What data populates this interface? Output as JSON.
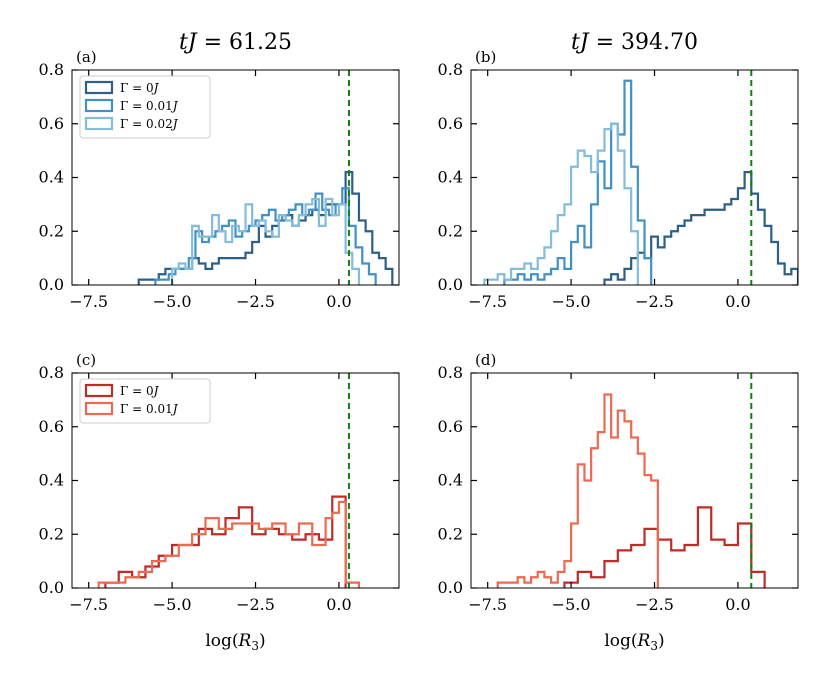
{
  "chart_data": [
    {
      "type": "histogram",
      "panel_label": "(a)",
      "column_title": "tJ = 61.25",
      "xlim": [
        -8.0,
        1.8
      ],
      "ylim": [
        0.0,
        0.8
      ],
      "xticks": [
        -7.5,
        -5.0,
        -2.5,
        0.0
      ],
      "xtick_labels": [
        "−7.5",
        "−5.0",
        "−2.5",
        "0.0"
      ],
      "yticks": [
        0.0,
        0.2,
        0.4,
        0.6,
        0.8
      ],
      "ytick_labels": [
        "0.0",
        "0.2",
        "0.4",
        "0.6",
        "0.8"
      ],
      "xlabel": "",
      "reference_line_x": 0.3,
      "legend_position": "top-left",
      "series": [
        {
          "name": "Γ = 0J",
          "color": "#2e5f86",
          "edges": [
            -6.0,
            -5.8,
            -5.6,
            -5.4,
            -5.2,
            -5.0,
            -4.8,
            -4.6,
            -4.4,
            -4.2,
            -4.0,
            -3.8,
            -3.6,
            -3.4,
            -3.2,
            -3.0,
            -2.8,
            -2.6,
            -2.4,
            -2.2,
            -2.0,
            -1.8,
            -1.6,
            -1.4,
            -1.2,
            -1.0,
            -0.8,
            -0.6,
            -0.4,
            -0.2,
            0.0,
            0.2,
            0.4,
            0.6,
            0.8,
            1.0,
            1.2,
            1.4,
            1.6
          ],
          "values": [
            0.02,
            0.02,
            0.02,
            0.04,
            0.06,
            0.06,
            0.06,
            0.06,
            0.1,
            0.08,
            0.06,
            0.08,
            0.1,
            0.1,
            0.1,
            0.1,
            0.12,
            0.16,
            0.22,
            0.18,
            0.22,
            0.24,
            0.26,
            0.22,
            0.24,
            0.26,
            0.28,
            0.26,
            0.3,
            0.3,
            0.3,
            0.42,
            0.34,
            0.24,
            0.2,
            0.12,
            0.1,
            0.06
          ]
        },
        {
          "name": "Γ = 0.01J",
          "color": "#4190c6",
          "edges": [
            -5.5,
            -5.3,
            -5.1,
            -4.9,
            -4.7,
            -4.5,
            -4.3,
            -4.1,
            -3.9,
            -3.7,
            -3.5,
            -3.3,
            -3.1,
            -2.9,
            -2.7,
            -2.5,
            -2.3,
            -2.1,
            -1.9,
            -1.7,
            -1.5,
            -1.3,
            -1.1,
            -0.9,
            -0.7,
            -0.5,
            -0.3,
            -0.1,
            0.1,
            0.3,
            0.5,
            0.7,
            0.9,
            1.1
          ],
          "values": [
            0.02,
            0.02,
            0.04,
            0.06,
            0.06,
            0.1,
            0.2,
            0.16,
            0.18,
            0.2,
            0.22,
            0.24,
            0.18,
            0.2,
            0.22,
            0.24,
            0.26,
            0.28,
            0.24,
            0.26,
            0.28,
            0.3,
            0.26,
            0.28,
            0.34,
            0.28,
            0.26,
            0.3,
            0.36,
            0.22,
            0.14,
            0.08,
            0.04
          ]
        },
        {
          "name": "Γ = 0.02J",
          "color": "#84bcdb",
          "edges": [
            -5.0,
            -4.8,
            -4.6,
            -4.4,
            -4.2,
            -4.0,
            -3.8,
            -3.6,
            -3.4,
            -3.2,
            -3.0,
            -2.8,
            -2.6,
            -2.4,
            -2.2,
            -2.0,
            -1.8,
            -1.6,
            -1.4,
            -1.2,
            -1.0,
            -0.8,
            -0.6,
            -0.4,
            -0.2,
            0.0,
            0.2,
            0.4,
            0.6
          ],
          "values": [
            0.06,
            0.08,
            0.06,
            0.22,
            0.18,
            0.18,
            0.26,
            0.2,
            0.16,
            0.22,
            0.2,
            0.3,
            0.22,
            0.24,
            0.2,
            0.18,
            0.26,
            0.24,
            0.22,
            0.26,
            0.3,
            0.32,
            0.22,
            0.32,
            0.26,
            0.3,
            0.12,
            0.06
          ]
        }
      ]
    },
    {
      "type": "histogram",
      "panel_label": "(b)",
      "column_title": "tJ = 394.70",
      "xlim": [
        -8.0,
        1.8
      ],
      "ylim": [
        0.0,
        0.8
      ],
      "xticks": [
        -7.5,
        -5.0,
        -2.5,
        0.0
      ],
      "xtick_labels": [
        "−7.5",
        "−5.0",
        "−2.5",
        "0.0"
      ],
      "yticks": [
        0.0,
        0.2,
        0.4,
        0.6,
        0.8
      ],
      "ytick_labels": [
        "0.0",
        "0.2",
        "0.4",
        "0.6",
        "0.8"
      ],
      "xlabel": "",
      "reference_line_x": 0.4,
      "series": [
        {
          "name": "Γ = 0J",
          "color": "#2e5f86",
          "edges": [
            -4.0,
            -3.8,
            -3.6,
            -3.4,
            -3.2,
            -3.0,
            -2.8,
            -2.6,
            -2.4,
            -2.2,
            -2.0,
            -1.8,
            -1.6,
            -1.4,
            -1.2,
            -1.0,
            -0.8,
            -0.6,
            -0.4,
            -0.2,
            0.0,
            0.2,
            0.4,
            0.6,
            0.8,
            1.0,
            1.2,
            1.4,
            1.6,
            1.8
          ],
          "values": [
            0.02,
            0.04,
            0.02,
            0.06,
            0.1,
            0.12,
            0.1,
            0.18,
            0.14,
            0.18,
            0.2,
            0.22,
            0.24,
            0.26,
            0.26,
            0.28,
            0.28,
            0.28,
            0.3,
            0.32,
            0.36,
            0.42,
            0.34,
            0.28,
            0.22,
            0.16,
            0.08,
            0.04,
            0.06
          ]
        },
        {
          "name": "Γ = 0.01J",
          "color": "#4190c6",
          "edges": [
            -7.0,
            -6.8,
            -6.6,
            -6.4,
            -6.2,
            -6.0,
            -5.8,
            -5.6,
            -5.4,
            -5.2,
            -5.0,
            -4.8,
            -4.6,
            -4.4,
            -4.2,
            -4.0,
            -3.8,
            -3.6,
            -3.4,
            -3.2,
            -3.0,
            -2.8,
            -2.6
          ],
          "values": [
            0.02,
            0.02,
            0.04,
            0.02,
            0.04,
            0.02,
            0.04,
            0.06,
            0.1,
            0.06,
            0.16,
            0.22,
            0.14,
            0.3,
            0.46,
            0.36,
            0.6,
            0.56,
            0.76,
            0.44,
            0.24,
            0.1
          ]
        },
        {
          "name": "Γ = 0.02J",
          "color": "#84bcdb",
          "edges": [
            -7.6,
            -7.4,
            -7.2,
            -7.0,
            -6.8,
            -6.6,
            -6.4,
            -6.2,
            -6.0,
            -5.8,
            -5.6,
            -5.4,
            -5.2,
            -5.0,
            -4.8,
            -4.6,
            -4.4,
            -4.2,
            -4.0,
            -3.8,
            -3.6,
            -3.4,
            -3.2,
            -3.0
          ],
          "values": [
            0.02,
            0.02,
            0.04,
            0.02,
            0.06,
            0.06,
            0.08,
            0.06,
            0.1,
            0.14,
            0.2,
            0.26,
            0.3,
            0.44,
            0.5,
            0.48,
            0.42,
            0.5,
            0.58,
            0.6,
            0.5,
            0.36,
            0.2
          ]
        }
      ]
    },
    {
      "type": "histogram",
      "panel_label": "(c)",
      "column_title": "",
      "xlim": [
        -8.0,
        1.8
      ],
      "ylim": [
        0.0,
        0.8
      ],
      "xticks": [
        -7.5,
        -5.0,
        -2.5,
        0.0
      ],
      "xtick_labels": [
        "−7.5",
        "−5.0",
        "−2.5",
        "0.0"
      ],
      "yticks": [
        0.0,
        0.2,
        0.4,
        0.6,
        0.8
      ],
      "ytick_labels": [
        "0.0",
        "0.2",
        "0.4",
        "0.6",
        "0.8"
      ],
      "xlabel": "log(R3)",
      "reference_line_x": 0.3,
      "legend_position": "top-left",
      "series": [
        {
          "name": "Γ = 0J",
          "color": "#bf2b26",
          "edges": [
            -7.0,
            -6.6,
            -6.2,
            -5.8,
            -5.4,
            -5.0,
            -4.6,
            -4.2,
            -3.8,
            -3.4,
            -3.0,
            -2.6,
            -2.2,
            -1.8,
            -1.4,
            -1.0,
            -0.6,
            -0.2,
            0.2
          ],
          "values": [
            0.02,
            0.06,
            0.04,
            0.08,
            0.12,
            0.16,
            0.16,
            0.22,
            0.2,
            0.26,
            0.3,
            0.2,
            0.22,
            0.2,
            0.18,
            0.2,
            0.18,
            0.34
          ]
        },
        {
          "name": "Γ = 0.01J",
          "color": "#ec6a52",
          "edges": [
            -7.2,
            -6.8,
            -6.4,
            -6.0,
            -5.6,
            -5.2,
            -4.8,
            -4.4,
            -4.0,
            -3.6,
            -3.2,
            -2.8,
            -2.4,
            -2.0,
            -1.6,
            -1.2,
            -0.8,
            -0.4,
            -0.2,
            0.0,
            0.2,
            0.4,
            0.6
          ],
          "values": [
            0.02,
            0.02,
            0.04,
            0.06,
            0.1,
            0.12,
            0.16,
            0.2,
            0.26,
            0.22,
            0.24,
            0.24,
            0.22,
            0.24,
            0.2,
            0.24,
            0.16,
            0.26,
            0.28,
            0.32,
            0.02,
            0.02
          ]
        }
      ]
    },
    {
      "type": "histogram",
      "panel_label": "(d)",
      "column_title": "",
      "xlim": [
        -8.0,
        1.8
      ],
      "ylim": [
        0.0,
        0.8
      ],
      "xticks": [
        -7.5,
        -5.0,
        -2.5,
        0.0
      ],
      "xtick_labels": [
        "−7.5",
        "−5.0",
        "−2.5",
        "0.0"
      ],
      "yticks": [
        0.0,
        0.2,
        0.4,
        0.6,
        0.8
      ],
      "ytick_labels": [
        "0.0",
        "0.2",
        "0.4",
        "0.6",
        "0.8"
      ],
      "xlabel": "log(R3)",
      "reference_line_x": 0.4,
      "series": [
        {
          "name": "Γ = 0J",
          "color": "#bf2b26",
          "edges": [
            -5.2,
            -4.8,
            -4.4,
            -4.0,
            -3.6,
            -3.2,
            -2.8,
            -2.4,
            -2.0,
            -1.6,
            -1.2,
            -0.8,
            -0.4,
            0.0,
            0.4,
            0.8
          ],
          "values": [
            0.02,
            0.06,
            0.04,
            0.1,
            0.14,
            0.16,
            0.22,
            0.18,
            0.14,
            0.16,
            0.3,
            0.18,
            0.16,
            0.24,
            0.06
          ]
        },
        {
          "name": "Γ = 0.01J",
          "color": "#ec6a52",
          "edges": [
            -7.2,
            -7.0,
            -6.8,
            -6.6,
            -6.4,
            -6.2,
            -6.0,
            -5.8,
            -5.6,
            -5.4,
            -5.2,
            -5.0,
            -4.8,
            -4.6,
            -4.4,
            -4.2,
            -4.0,
            -3.8,
            -3.6,
            -3.4,
            -3.2,
            -3.0,
            -2.8,
            -2.6,
            -2.4
          ],
          "values": [
            0.02,
            0.02,
            0.02,
            0.04,
            0.02,
            0.04,
            0.06,
            0.04,
            0.02,
            0.06,
            0.1,
            0.24,
            0.46,
            0.4,
            0.52,
            0.58,
            0.72,
            0.56,
            0.66,
            0.62,
            0.56,
            0.5,
            0.42,
            0.4
          ]
        }
      ]
    }
  ]
}
